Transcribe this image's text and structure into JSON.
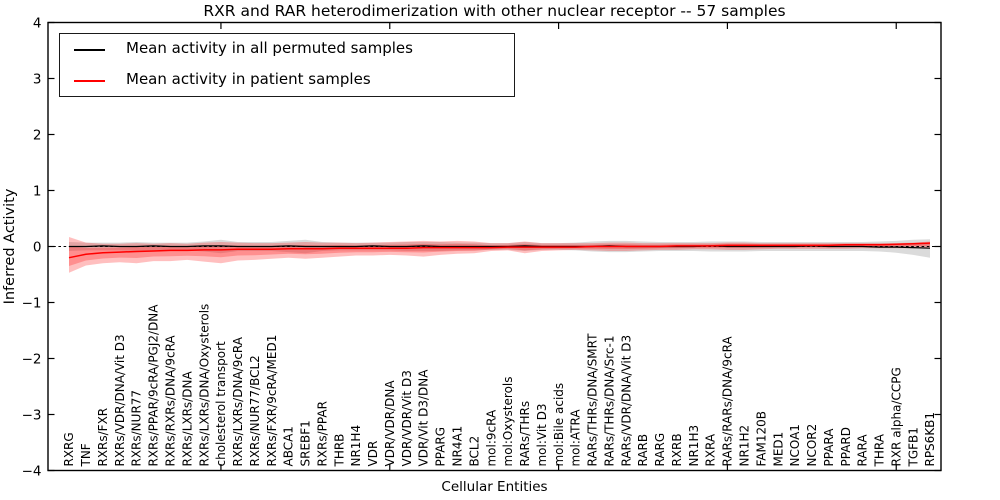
{
  "figure": {
    "title": "RXR and RAR heterodimerization with other nuclear receptor -- 57 samples",
    "xlabel": "Cellular Entities",
    "ylabel": "Inferred Activity"
  },
  "legend": {
    "items": [
      {
        "label": "Mean activity in all permuted samples",
        "color": "#000000"
      },
      {
        "label": "Mean activity in patient samples",
        "color": "#ff0000"
      }
    ]
  },
  "chart_data": {
    "type": "line",
    "title": "RXR and RAR heterodimerization with other nuclear receptor -- 57 samples",
    "xlabel": "Cellular Entities",
    "ylabel": "Inferred Activity",
    "ylim": [
      -4,
      4
    ],
    "yticks": [
      4,
      3,
      2,
      1,
      0,
      -1,
      -2,
      -3,
      -4
    ],
    "xtick_indices": [
      9,
      19,
      29,
      39,
      49
    ],
    "grid": false,
    "legend_position": "upper left",
    "zero_line": {
      "y": 0,
      "style": "dashed",
      "color": "#000000"
    },
    "categories": [
      "RXRG",
      "TNF",
      "RXRs/FXR",
      "RXRs/VDR/DNA/Vit D3",
      "RXRs/NUR77",
      "RXRs/PPAR/9cRA/PGJ2/DNA",
      "RXRs/RXRs/DNA/9cRA",
      "RXRs/LXRs/DNA",
      "RXRs/LXRs/DNA/Oxysterols",
      "cholesterol transport",
      "RXRs/LXRs/DNA/9cRA",
      "RXRs/NUR77/BCL2",
      "RXRs/FXR/9cRA/MED1",
      "ABCA1",
      "SREBF1",
      "RXRs/PPAR",
      "THRB",
      "NR1H4",
      "VDR",
      "VDR/VDR/DNA",
      "VDR/VDR/Vit D3",
      "VDR/Vit D3/DNA",
      "PPARG",
      "NR4A1",
      "BCL2",
      "mol:9cRA",
      "mol:Oxysterols",
      "RARs/THRs",
      "mol:Vit D3",
      "mol:Bile acids",
      "mol:ATRA",
      "RARs/THRs/DNA/SMRT",
      "RARs/THRs/DNA/Src-1",
      "RARs/VDR/DNA/Vit D3",
      "RARB",
      "RARG",
      "RXRB",
      "NR1H3",
      "RXRA",
      "RARs/RARs/DNA/9cRA",
      "NR1H2",
      "FAM120B",
      "MED1",
      "NCOA1",
      "NCOR2",
      "PPARA",
      "PPARD",
      "RARA",
      "THRA",
      "RXR alpha/CCPG",
      "TGFB1",
      "RPS6KB1"
    ],
    "series": [
      {
        "name": "Mean activity in all permuted samples",
        "color": "#000000",
        "band_color": "#909090",
        "mean": [
          0.0,
          0.0,
          0.01,
          0.0,
          0.0,
          0.01,
          0.0,
          0.0,
          0.01,
          0.01,
          0.0,
          0.0,
          0.0,
          0.01,
          0.0,
          0.0,
          0.0,
          0.0,
          0.01,
          0.0,
          0.0,
          0.01,
          0.0,
          0.0,
          0.0,
          0.0,
          0.0,
          0.01,
          0.0,
          0.0,
          0.0,
          0.0,
          0.01,
          0.0,
          0.0,
          0.0,
          0.0,
          0.0,
          0.01,
          0.0,
          0.0,
          0.0,
          0.0,
          0.0,
          0.01,
          0.0,
          0.0,
          0.0,
          -0.01,
          -0.01,
          -0.02,
          -0.03
        ],
        "upper": [
          0.08,
          0.07,
          0.07,
          0.07,
          0.08,
          0.07,
          0.07,
          0.07,
          0.09,
          0.12,
          0.08,
          0.08,
          0.08,
          0.1,
          0.12,
          0.08,
          0.07,
          0.07,
          0.07,
          0.07,
          0.08,
          0.08,
          0.08,
          0.07,
          0.07,
          0.06,
          0.06,
          0.08,
          0.06,
          0.06,
          0.07,
          0.09,
          0.1,
          0.1,
          0.09,
          0.08,
          0.08,
          0.08,
          0.09,
          0.09,
          0.09,
          0.08,
          0.08,
          0.08,
          0.08,
          0.08,
          0.08,
          0.08,
          0.09,
          0.1,
          0.12,
          0.13
        ],
        "lower": [
          -0.08,
          -0.07,
          -0.07,
          -0.07,
          -0.08,
          -0.07,
          -0.07,
          -0.07,
          -0.09,
          -0.12,
          -0.08,
          -0.08,
          -0.08,
          -0.1,
          -0.12,
          -0.08,
          -0.07,
          -0.07,
          -0.07,
          -0.07,
          -0.08,
          -0.08,
          -0.08,
          -0.07,
          -0.07,
          -0.06,
          -0.06,
          -0.08,
          -0.06,
          -0.06,
          -0.07,
          -0.09,
          -0.1,
          -0.1,
          -0.09,
          -0.08,
          -0.08,
          -0.08,
          -0.09,
          -0.09,
          -0.09,
          -0.08,
          -0.08,
          -0.08,
          -0.08,
          -0.08,
          -0.08,
          -0.08,
          -0.09,
          -0.11,
          -0.15,
          -0.2
        ]
      },
      {
        "name": "Mean activity in patient samples",
        "color": "#ff0000",
        "band_color": "#ff0000",
        "mean": [
          -0.2,
          -0.14,
          -0.11,
          -0.1,
          -0.09,
          -0.08,
          -0.07,
          -0.07,
          -0.06,
          -0.06,
          -0.05,
          -0.05,
          -0.05,
          -0.04,
          -0.04,
          -0.04,
          -0.03,
          -0.03,
          -0.03,
          -0.03,
          -0.03,
          -0.02,
          -0.02,
          -0.02,
          -0.02,
          -0.02,
          -0.01,
          -0.01,
          -0.01,
          -0.01,
          -0.01,
          0.0,
          0.0,
          0.0,
          0.0,
          0.0,
          0.01,
          0.01,
          0.01,
          0.02,
          0.02,
          0.02,
          0.02,
          0.02,
          0.02,
          0.02,
          0.03,
          0.03,
          0.03,
          0.04,
          0.05,
          0.06
        ],
        "upper": [
          0.17,
          0.07,
          0.05,
          0.05,
          0.06,
          0.05,
          0.06,
          0.05,
          0.07,
          0.08,
          0.07,
          0.06,
          0.06,
          0.07,
          0.08,
          0.07,
          0.07,
          0.06,
          0.07,
          0.08,
          0.09,
          0.1,
          0.09,
          0.1,
          0.09,
          0.06,
          0.06,
          0.09,
          0.06,
          0.06,
          0.06,
          0.06,
          0.07,
          0.07,
          0.06,
          0.06,
          0.06,
          0.06,
          0.06,
          0.07,
          0.07,
          0.06,
          0.06,
          0.06,
          0.06,
          0.06,
          0.06,
          0.06,
          0.06,
          0.06,
          0.07,
          0.09
        ],
        "lower": [
          -0.47,
          -0.34,
          -0.3,
          -0.28,
          -0.3,
          -0.26,
          -0.26,
          -0.24,
          -0.27,
          -0.3,
          -0.25,
          -0.24,
          -0.22,
          -0.2,
          -0.22,
          -0.2,
          -0.18,
          -0.16,
          -0.16,
          -0.15,
          -0.16,
          -0.18,
          -0.15,
          -0.13,
          -0.12,
          -0.08,
          -0.07,
          -0.12,
          -0.08,
          -0.07,
          -0.06,
          -0.07,
          -0.08,
          -0.08,
          -0.07,
          -0.06,
          -0.06,
          -0.05,
          -0.05,
          -0.06,
          -0.06,
          -0.05,
          -0.04,
          -0.04,
          -0.04,
          -0.04,
          -0.04,
          -0.03,
          -0.03,
          -0.03,
          -0.03,
          -0.02
        ]
      }
    ]
  }
}
